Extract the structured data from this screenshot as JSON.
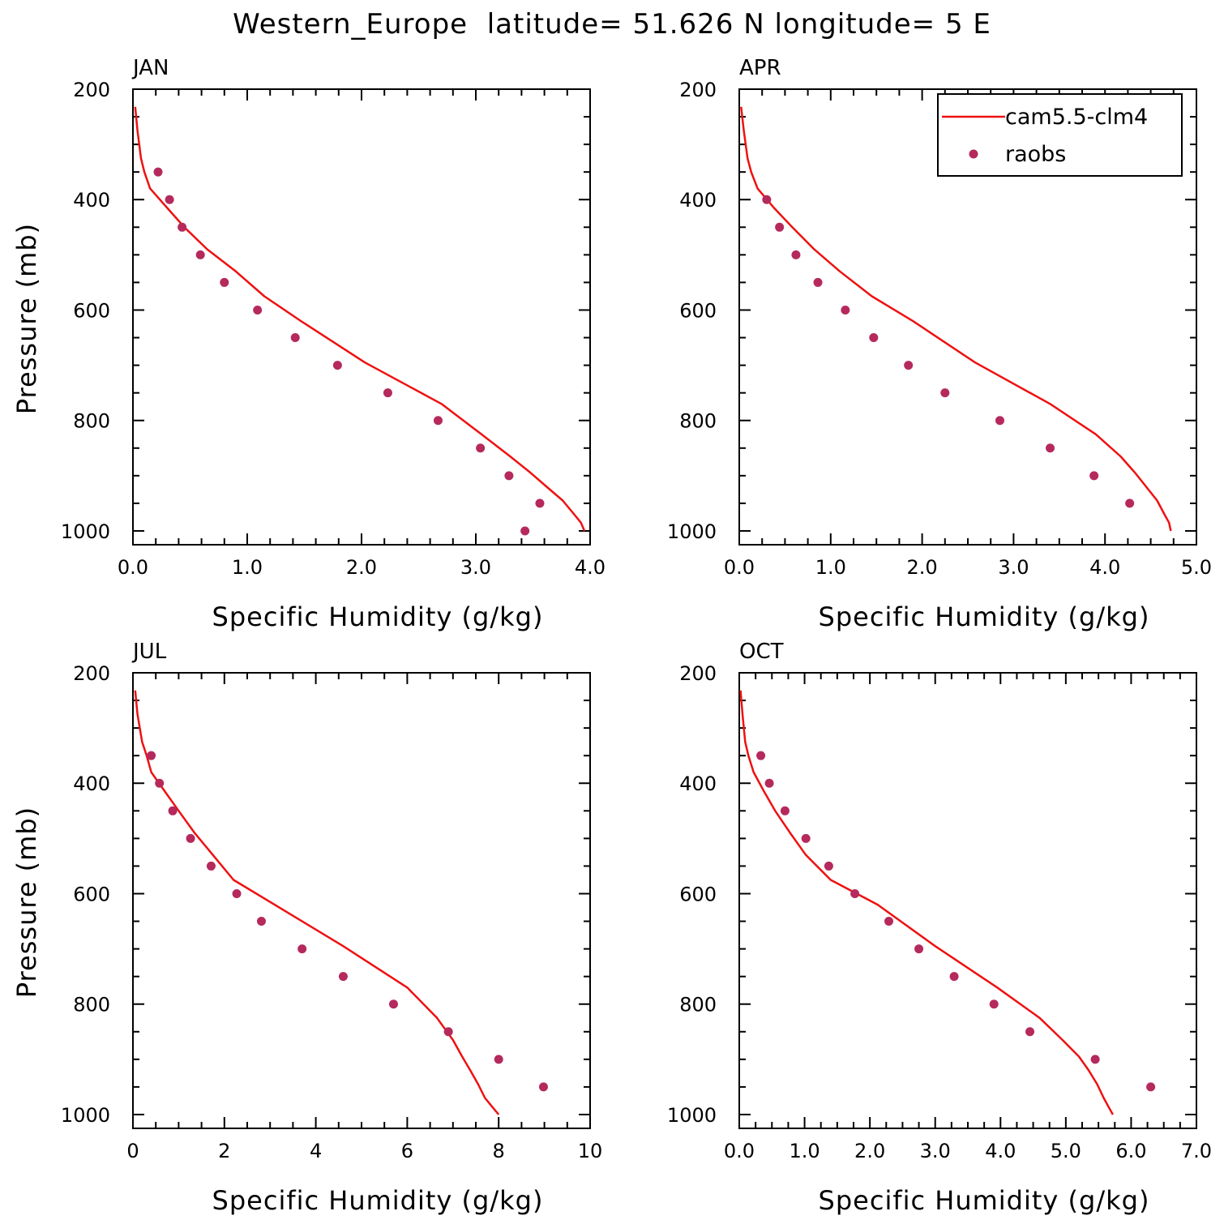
{
  "figure_title": "Western_Europe  latitude= 51.626 N longitude= 5 E",
  "colors": {
    "model": "#ee1111",
    "obs": "#b5295c"
  },
  "legend": {
    "model_label": "cam5.5-clm4",
    "obs_label": "raobs",
    "placement": "top-right of APR panel"
  },
  "chart_data": [
    {
      "type": "line",
      "panel_label": "JAN",
      "xlabel": "Specific Humidity (g/kg)",
      "ylabel": "Pressure (mb)",
      "xlim": [
        0,
        4
      ],
      "ylim": [
        1025,
        200
      ],
      "xticks": [
        0,
        1,
        2,
        3,
        4
      ],
      "xtick_labels": [
        "0.0",
        "1.0",
        "2.0",
        "3.0",
        "4.0"
      ],
      "xminor": 0.2,
      "yticks": [
        200,
        400,
        600,
        800,
        1000
      ],
      "ytick_labels": [
        "200",
        "400",
        "600",
        "800",
        "1000"
      ],
      "yminor": 50,
      "series": [
        {
          "name": "cam5.5-clm4",
          "kind": "line",
          "x": [
            0.02,
            0.04,
            0.07,
            0.1,
            0.15,
            0.3,
            0.45,
            0.65,
            0.9,
            1.15,
            1.47,
            2.03,
            2.7,
            3.05,
            3.3,
            3.48,
            3.62,
            3.76,
            3.86,
            3.92,
            3.95
          ],
          "y": [
            232,
            275,
            325,
            350,
            380,
            415,
            450,
            490,
            530,
            575,
            620,
            695,
            770,
            825,
            865,
            895,
            920,
            945,
            970,
            985,
            1000
          ]
        },
        {
          "name": "raobs",
          "kind": "scatter",
          "x": [
            0.22,
            0.32,
            0.43,
            0.59,
            0.8,
            1.09,
            1.42,
            1.79,
            2.23,
            2.67,
            3.04,
            3.29,
            3.56,
            3.43
          ],
          "y": [
            350,
            400,
            450,
            500,
            550,
            600,
            650,
            700,
            750,
            800,
            850,
            900,
            950,
            1000
          ]
        }
      ]
    },
    {
      "type": "line",
      "panel_label": "APR",
      "xlabel": "Specific Humidity (g/kg)",
      "ylabel": "",
      "xlim": [
        0,
        5
      ],
      "ylim": [
        1025,
        200
      ],
      "xticks": [
        0,
        1,
        2,
        3,
        4,
        5
      ],
      "xtick_labels": [
        "0.0",
        "1.0",
        "2.0",
        "3.0",
        "4.0",
        "5.0"
      ],
      "xminor": 0.25,
      "yticks": [
        200,
        400,
        600,
        800,
        1000
      ],
      "ytick_labels": [
        "200",
        "400",
        "600",
        "800",
        "1000"
      ],
      "yminor": 50,
      "series": [
        {
          "name": "cam5.5-clm4",
          "kind": "line",
          "x": [
            0.02,
            0.05,
            0.09,
            0.13,
            0.2,
            0.38,
            0.58,
            0.82,
            1.1,
            1.45,
            1.9,
            2.58,
            3.4,
            3.9,
            4.17,
            4.33,
            4.45,
            4.57,
            4.65,
            4.7,
            4.72
          ],
          "y": [
            232,
            275,
            325,
            350,
            380,
            415,
            450,
            490,
            530,
            575,
            620,
            695,
            770,
            825,
            865,
            895,
            920,
            945,
            970,
            985,
            1000
          ]
        },
        {
          "name": "raobs",
          "kind": "scatter",
          "x": [
            0.3,
            0.44,
            0.62,
            0.86,
            1.16,
            1.47,
            1.85,
            2.25,
            2.85,
            3.4,
            3.88,
            4.27
          ],
          "y": [
            400,
            450,
            500,
            550,
            600,
            650,
            700,
            750,
            800,
            850,
            900,
            950
          ]
        }
      ]
    },
    {
      "type": "line",
      "panel_label": "JUL",
      "xlabel": "Specific Humidity (g/kg)",
      "ylabel": "Pressure (mb)",
      "xlim": [
        0,
        10
      ],
      "ylim": [
        1025,
        200
      ],
      "xticks": [
        0,
        2,
        4,
        6,
        8,
        10
      ],
      "xtick_labels": [
        "0",
        "2",
        "4",
        "6",
        "8",
        "10"
      ],
      "xminor": 0.5,
      "yticks": [
        200,
        400,
        600,
        800,
        1000
      ],
      "ytick_labels": [
        "200",
        "400",
        "600",
        "800",
        "1000"
      ],
      "yminor": 50,
      "series": [
        {
          "name": "cam5.5-clm4",
          "kind": "line",
          "x": [
            0.05,
            0.1,
            0.2,
            0.3,
            0.4,
            0.7,
            1.0,
            1.35,
            1.75,
            2.2,
            3.1,
            4.6,
            6.0,
            6.65,
            7.0,
            7.2,
            7.38,
            7.55,
            7.7,
            7.85,
            8.0
          ],
          "y": [
            232,
            275,
            325,
            350,
            380,
            415,
            450,
            490,
            530,
            575,
            620,
            695,
            770,
            825,
            865,
            895,
            920,
            945,
            970,
            985,
            1000
          ]
        },
        {
          "name": "raobs",
          "kind": "scatter",
          "x": [
            0.4,
            0.58,
            0.87,
            1.26,
            1.71,
            2.27,
            2.81,
            3.7,
            4.6,
            5.7,
            6.9,
            8.0,
            8.98
          ],
          "y": [
            350,
            400,
            450,
            500,
            550,
            600,
            650,
            700,
            750,
            800,
            850,
            900,
            950
          ]
        }
      ]
    },
    {
      "type": "line",
      "panel_label": "OCT",
      "xlabel": "Specific Humidity (g/kg)",
      "ylabel": "",
      "xlim": [
        0,
        7
      ],
      "ylim": [
        1025,
        200
      ],
      "xticks": [
        0,
        1,
        2,
        3,
        4,
        5,
        6,
        7
      ],
      "xtick_labels": [
        "0.0",
        "1.0",
        "2.0",
        "3.0",
        "4.0",
        "5.0",
        "6.0",
        "7.0"
      ],
      "xminor": 0.25,
      "yticks": [
        200,
        400,
        600,
        800,
        1000
      ],
      "ytick_labels": [
        "200",
        "400",
        "600",
        "800",
        "1000"
      ],
      "yminor": 50,
      "series": [
        {
          "name": "cam5.5-clm4",
          "kind": "line",
          "x": [
            0.02,
            0.05,
            0.09,
            0.14,
            0.22,
            0.38,
            0.55,
            0.78,
            1.02,
            1.4,
            2.12,
            3.0,
            3.95,
            4.6,
            4.95,
            5.2,
            5.35,
            5.48,
            5.58,
            5.65,
            5.72
          ],
          "y": [
            232,
            275,
            325,
            350,
            380,
            415,
            450,
            490,
            530,
            575,
            620,
            695,
            770,
            825,
            865,
            895,
            920,
            945,
            970,
            985,
            1000
          ]
        },
        {
          "name": "raobs",
          "kind": "scatter",
          "x": [
            0.33,
            0.46,
            0.7,
            1.02,
            1.37,
            1.77,
            2.29,
            2.75,
            3.29,
            3.9,
            4.45,
            5.45,
            6.3
          ],
          "y": [
            350,
            400,
            450,
            500,
            550,
            600,
            650,
            700,
            750,
            800,
            850,
            900,
            950
          ]
        }
      ]
    }
  ]
}
